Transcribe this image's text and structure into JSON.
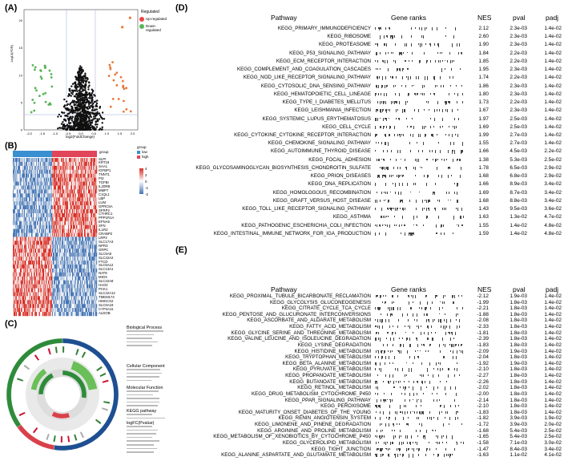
{
  "panels": {
    "A": "(A)",
    "B": "(B)",
    "C": "(C)",
    "D": "(D)",
    "E": "(E)"
  },
  "volcano": {
    "ylabel": "-log10(FDR)",
    "xlabel": "log2(FoldChange)",
    "legend_title": "Regulated",
    "legend_up": "Up-regulated",
    "legend_down": "Down-regulated",
    "colors": {
      "up": "#e8793a",
      "down": "#59b459",
      "ns": "#111111"
    },
    "xticks": [
      "-2.0",
      "-1.5",
      "-1.0",
      "-0.5",
      "0.0",
      "0.5",
      "1.0",
      "1.5",
      "2.0"
    ],
    "yticks": [
      "0",
      "5",
      "10",
      "15",
      "20"
    ]
  },
  "heatmap": {
    "genes": [
      "SLPI",
      "KRT19",
      "SAA1",
      "IGFBP1",
      "TNNT1",
      "PI3",
      "TGFBI",
      "IL20RB",
      "MMP7",
      "C1QL1",
      "LBP",
      "LUM",
      "GPRC5A",
      "SFRP2",
      "CTHRC1",
      "PPP1R1A",
      "EFNA5",
      "SFN",
      "IL1R2",
      "CRABP2",
      "LRP2",
      "SLC17A3",
      "NPR3",
      "GRPC",
      "SLC5A8",
      "SLC22A2",
      "FTCD",
      "SLC5A12",
      "SLC13A1",
      "NAT8",
      "MIOX",
      "SLC22A8",
      "HAO2",
      "PCK1",
      "SLC22A12",
      "TMEM174",
      "HMGCS2",
      "SLC6A19",
      "CYP4A11",
      "ALDOB"
    ],
    "legend_title": "group",
    "groups": [
      "low",
      "high"
    ],
    "group_colors": {
      "low": "#3a8fd0",
      "high": "#e0455a"
    },
    "scale_ticks": [
      "4",
      "2",
      "0",
      "-1",
      "-2"
    ],
    "group_label": "group"
  },
  "circos": {
    "legend_bp": "Biological Process",
    "legend_cc": "Cellular Component",
    "legend_mf": "Molecular Function",
    "legend_kegg": "KEGG pathway",
    "legend_logfc": "logFC(Pvalue)"
  },
  "gsea_d": {
    "headers": {
      "pathway": "Pathway",
      "ranks": "Gene ranks",
      "nes": "NES",
      "pval": "pval",
      "padj": "padj"
    },
    "rows": [
      {
        "name": "KEGG_PRIMARY_IMMUNODEFICIENCY",
        "nes": "2.12",
        "pval": "2.3e-03",
        "padj": "1.4e-02"
      },
      {
        "name": "KEGG_RIBOSOME",
        "nes": "2.60",
        "pval": "2.3e-03",
        "padj": "1.4e-02"
      },
      {
        "name": "KEGG_PROTEASOME",
        "nes": "1.90",
        "pval": "2.3e-03",
        "padj": "1.4e-02"
      },
      {
        "name": "KEGG_P53_SIGNALING_PATHWAY",
        "nes": "1.84",
        "pval": "2.2e-03",
        "padj": "1.4e-02"
      },
      {
        "name": "KEGG_ECM_RECEPTOR_INTERACTION",
        "nes": "1.85",
        "pval": "2.2e-03",
        "padj": "1.4e-02"
      },
      {
        "name": "KEGG_COMPLEMENT_AND_COAGULATION_CASCADES",
        "nes": "1.95",
        "pval": "2.3e-03",
        "padj": "1.4e-02"
      },
      {
        "name": "KEGG_NOD_LIKE_RECEPTOR_SIGNALING_PATHWAY",
        "nes": "1.74",
        "pval": "2.2e-03",
        "padj": "1.4e-02"
      },
      {
        "name": "KEGG_CYTOSOLIC_DNA_SENSING_PATHWAY",
        "nes": "1.86",
        "pval": "2.3e-03",
        "padj": "1.4e-02"
      },
      {
        "name": "KEGG_HEMATOPOIETIC_CELL_LINEAGE",
        "nes": "1.80",
        "pval": "2.3e-03",
        "padj": "1.4e-02"
      },
      {
        "name": "KEGG_TYPE_I_DIABETES_MELLITUS",
        "nes": "1.73",
        "pval": "2.2e-03",
        "padj": "1.4e-02"
      },
      {
        "name": "KEGG_LEISHMANIA_INFECTION",
        "nes": "1.67",
        "pval": "2.3e-03",
        "padj": "1.4e-02"
      },
      {
        "name": "KEGG_SYSTEMIC_LUPUS_ERYTHEMATOSUS",
        "nes": "1.97",
        "pval": "2.5e-03",
        "padj": "1.4e-02"
      },
      {
        "name": "KEGG_CELL_CYCLE",
        "nes": "1.69",
        "pval": "2.5e-03",
        "padj": "1.4e-02"
      },
      {
        "name": "KEGG_CYTOKINE_CYTOKINE_RECEPTOR_INTERACTION",
        "nes": "1.99",
        "pval": "2.7e-03",
        "padj": "1.4e-02"
      },
      {
        "name": "KEGG_CHEMOKINE_SIGNALING_PATHWAY",
        "nes": "1.55",
        "pval": "2.7e-03",
        "padj": "1.4e-02"
      },
      {
        "name": "KEGG_AUTOIMMUNE_THYROID_DISEASE",
        "nes": "1.66",
        "pval": "4.5e-03",
        "padj": "2.2e-02"
      },
      {
        "name": "KEGG_FOCAL_ADHESION",
        "nes": "1.38",
        "pval": "5.3e-03",
        "padj": "2.5e-02"
      },
      {
        "name": "KEGG_GLYCOSAMINOGLYCAN_BIOSYNTHESIS_CHONDROITIN_SULFATE",
        "nes": "1.78",
        "pval": "6.5e-03",
        "padj": "2.9e-02"
      },
      {
        "name": "KEGG_PRION_DISEASES",
        "nes": "1.68",
        "pval": "6.8e-03",
        "padj": "2.9e-02"
      },
      {
        "name": "KEGG_DNA_REPLICATION",
        "nes": "1.66",
        "pval": "8.9e-03",
        "padj": "3.4e-02"
      },
      {
        "name": "KEGG_HOMOLOGOUS_RECOMBINATION",
        "nes": "1.69",
        "pval": "8.7e-03",
        "padj": "3.4e-02"
      },
      {
        "name": "KEGG_GRAFT_VERSUS_HOST_DISEASE",
        "nes": "1.68",
        "pval": "8.8e-03",
        "padj": "3.4e-02"
      },
      {
        "name": "KEGG_TOLL_LIKE_RECEPTOR_SIGNALING_PATHWAY",
        "nes": "1.43",
        "pval": "9.5e-03",
        "padj": "3.6e-02"
      },
      {
        "name": "KEGG_ASTHMA",
        "nes": "1.63",
        "pval": "1.3e-02",
        "padj": "4.7e-02"
      },
      {
        "name": "KEGG_PATHOGENIC_ESCHERICHIA_COLI_INFECTION",
        "nes": "1.55",
        "pval": "1.4e-02",
        "padj": "4.8e-02"
      },
      {
        "name": "KEGG_INTESTINAL_IMMUNE_NETWORK_FOR_IGA_PRODUCTION",
        "nes": "1.59",
        "pval": "1.4e-02",
        "padj": "4.8e-02"
      }
    ]
  },
  "gsea_e": {
    "headers": {
      "pathway": "Pathway",
      "ranks": "Gene ranks",
      "nes": "NES",
      "pval": "pval",
      "padj": "padj"
    },
    "rows": [
      {
        "name": "KEGG_PROXIMAL_TUBULE_BICARBONATE_RECLAMATION",
        "nes": "-2.12",
        "pval": "1.9e-03",
        "padj": "1.4e-02"
      },
      {
        "name": "KEGG_GLYCOLYSIS_GLUCONEOGENESIS",
        "nes": "-1.99",
        "pval": "1.8e-03",
        "padj": "1.4e-02"
      },
      {
        "name": "KEGG_CITRATE_CYCLE_TCA_CYCLE",
        "nes": "-2.21",
        "pval": "1.8e-03",
        "padj": "1.4e-02"
      },
      {
        "name": "KEGG_PENTOSE_AND_GLUCURONATE_INTERCONVERSIONS",
        "nes": "-1.88",
        "pval": "1.8e-03",
        "padj": "1.4e-02"
      },
      {
        "name": "KEGG_ASCORBATE_AND_ALDARATE_METABOLISM",
        "nes": "-2.08",
        "pval": "1.8e-03",
        "padj": "1.4e-02"
      },
      {
        "name": "KEGG_FATTY_ACID_METABOLISM",
        "nes": "-2.33",
        "pval": "1.8e-03",
        "padj": "1.4e-02"
      },
      {
        "name": "KEGG_GLYCINE_SERINE_AND_THREONINE_METABOLISM",
        "nes": "-1.81",
        "pval": "1.8e-03",
        "padj": "1.4e-02"
      },
      {
        "name": "KEGG_VALINE_LEUCINE_AND_ISOLEUCINE_DEGRADATION",
        "nes": "-2.39",
        "pval": "1.8e-03",
        "padj": "1.4e-02"
      },
      {
        "name": "KEGG_LYSINE_DEGRADATION",
        "nes": "-1.83",
        "pval": "1.8e-03",
        "padj": "1.4e-02"
      },
      {
        "name": "KEGG_HISTIDINE_METABOLISM",
        "nes": "-2.09",
        "pval": "1.9e-03",
        "padj": "1.4e-02"
      },
      {
        "name": "KEGG_TRYPTOPHAN_METABOLISM",
        "nes": "-2.04",
        "pval": "1.8e-03",
        "padj": "1.4e-02"
      },
      {
        "name": "KEGG_BETA_ALANINE_METABOLISM",
        "nes": "-1.92",
        "pval": "1.9e-03",
        "padj": "1.4e-02"
      },
      {
        "name": "KEGG_PYRUVATE_METABOLISM",
        "nes": "-2.10",
        "pval": "1.8e-03",
        "padj": "1.4e-02"
      },
      {
        "name": "KEGG_PROPANOATE_METABOLISM",
        "nes": "-2.27",
        "pval": "1.8e-03",
        "padj": "1.4e-02"
      },
      {
        "name": "KEGG_BUTANOATE_METABOLISM",
        "nes": "-2.26",
        "pval": "1.8e-03",
        "padj": "1.4e-02"
      },
      {
        "name": "KEGG_RETINOL_METABOLISM",
        "nes": "-2.02",
        "pval": "1.8e-03",
        "padj": "1.4e-02"
      },
      {
        "name": "KEGG_DRUG_METABOLISM_CYTOCHROME_P450",
        "nes": "-2.00",
        "pval": "1.8e-03",
        "padj": "1.4e-02"
      },
      {
        "name": "KEGG_PPAR_SIGNALING_PATHWAY",
        "nes": "-2.14",
        "pval": "1.8e-03",
        "padj": "1.4e-02"
      },
      {
        "name": "KEGG_PEROXISOME",
        "nes": "-2.10",
        "pval": "1.8e-03",
        "padj": "1.4e-02"
      },
      {
        "name": "KEGG_MATURITY_ONSET_DIABETES_OF_THE_YOUNG",
        "nes": "-1.83",
        "pval": "1.8e-03",
        "padj": "1.4e-02"
      },
      {
        "name": "KEGG_RENIN_ANGIOTENSIN_SYSTEM",
        "nes": "-1.82",
        "pval": "3.9e-03",
        "padj": "1.9e-02"
      },
      {
        "name": "KEGG_LIMONENE_AND_PINENE_DEGRADATION",
        "nes": "-1.72",
        "pval": "3.9e-03",
        "padj": "2.0e-02"
      },
      {
        "name": "KEGG_ARGININE_AND_PROLINE_METABOLISM",
        "nes": "-1.68",
        "pval": "5.4e-03",
        "padj": "2.5e-02"
      },
      {
        "name": "KEGG_METABOLISM_OF_XENOBIOTICS_BY_CYTOCHROME_P450",
        "nes": "-1.65",
        "pval": "5.4e-03",
        "padj": "2.5e-02"
      },
      {
        "name": "KEGG_GLYCEROLIPID_METABOLISM",
        "nes": "-1.58",
        "pval": "7.1e-03",
        "padj": "3.0e-02"
      },
      {
        "name": "KEGG_TIGHT_JUNCTION",
        "nes": "-1.47",
        "pval": "8.4e-03",
        "padj": "3.4e-02"
      },
      {
        "name": "KEGG_ALANINE_ASPARTATE_AND_GLUTAMATE_METABOLISM",
        "nes": "-1.63",
        "pval": "1.1e-02",
        "padj": "4.1e-02"
      }
    ]
  }
}
